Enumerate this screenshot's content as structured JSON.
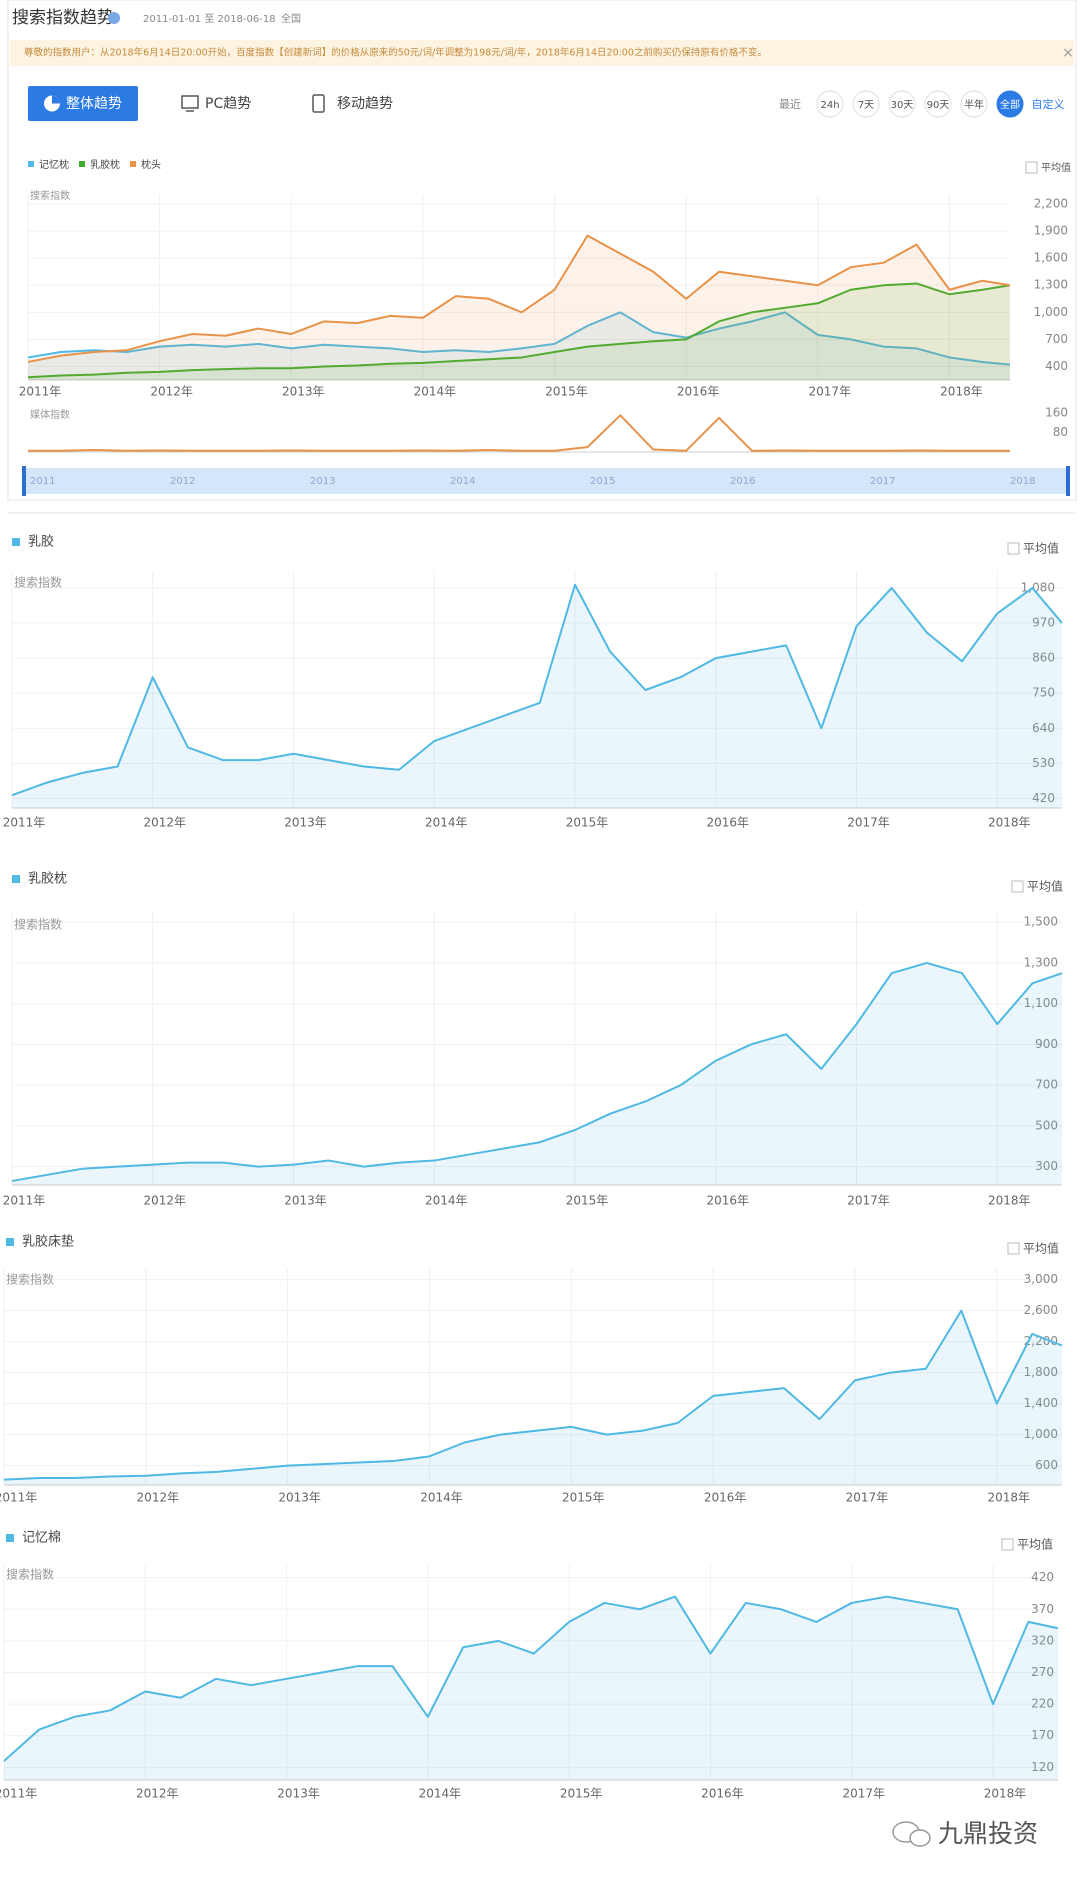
{
  "header": {
    "title": "搜索指数趋势",
    "date_range": "2011-01-01 至 2018-06-18",
    "region": "全国"
  },
  "notice": {
    "text": "尊敬的指数用户：从2018年6月14日20:00开始，百度指数【创建新词】的价格从原来的50元/词/年调整为198元/词/年，2018年6月14日20:00之前购买仍保持原有价格不变。",
    "close": "×"
  },
  "tabs": [
    "整体趋势",
    "PC趋势",
    "移动趋势"
  ],
  "range": {
    "label": "最近",
    "options": [
      "24h",
      "7天",
      "30天",
      "90天",
      "半年",
      "全部"
    ],
    "custom": "自定义"
  },
  "navigator": {
    "labels": [
      "2011",
      "2012",
      "2013",
      "2014",
      "2015",
      "2016",
      "2017",
      "2018"
    ]
  },
  "chart_data": [
    {
      "type": "line",
      "ylabel": "搜索指数",
      "avg_label": "平均值",
      "area": true,
      "grid": true,
      "x": [
        2011,
        2011.25,
        2011.5,
        2011.75,
        2012,
        2012.25,
        2012.5,
        2012.75,
        2013,
        2013.25,
        2013.5,
        2013.75,
        2014,
        2014.25,
        2014.5,
        2014.75,
        2015,
        2015.25,
        2015.5,
        2015.75,
        2016,
        2016.25,
        2016.5,
        2016.75,
        2017,
        2017.25,
        2017.5,
        2017.75,
        2018,
        2018.25,
        2018.46
      ],
      "series": [
        {
          "name": "记忆枕",
          "color": "#4fb9e3",
          "values": [
            500,
            560,
            580,
            560,
            620,
            640,
            620,
            650,
            600,
            640,
            620,
            600,
            560,
            580,
            560,
            600,
            650,
            850,
            1000,
            780,
            720,
            820,
            900,
            1000,
            750,
            700,
            620,
            600,
            500,
            450,
            420
          ]
        },
        {
          "name": "乳胶枕",
          "color": "#3fad2e",
          "values": [
            280,
            300,
            310,
            330,
            340,
            360,
            370,
            380,
            380,
            400,
            410,
            430,
            440,
            460,
            480,
            500,
            560,
            620,
            650,
            680,
            700,
            900,
            1000,
            1050,
            1100,
            1250,
            1300,
            1320,
            1200,
            1250,
            1300
          ]
        },
        {
          "name": "枕头",
          "color": "#e8924a",
          "values": [
            450,
            520,
            560,
            580,
            680,
            760,
            740,
            820,
            760,
            900,
            880,
            960,
            940,
            1180,
            1150,
            1000,
            1250,
            1850,
            1650,
            1450,
            1150,
            1450,
            1400,
            1350,
            1300,
            1500,
            1550,
            1750,
            1250,
            1350,
            1300
          ]
        }
      ],
      "xlim": [
        2011,
        2018.46
      ],
      "ylim": [
        250,
        2300
      ],
      "xticks": [
        {
          "value": 2011,
          "label": "2011年"
        },
        {
          "value": 2012,
          "label": "2012年"
        },
        {
          "value": 2013,
          "label": "2013年"
        },
        {
          "value": 2014,
          "label": "2014年"
        },
        {
          "value": 2015,
          "label": "2015年"
        },
        {
          "value": 2016,
          "label": "2016年"
        },
        {
          "value": 2017,
          "label": "2017年"
        },
        {
          "value": 2018,
          "label": "2018年"
        }
      ],
      "yticks": [
        {
          "value": 400,
          "label": "400"
        },
        {
          "value": 700,
          "label": "700"
        },
        {
          "value": 1000,
          "label": "1,000"
        },
        {
          "value": 1300,
          "label": "1,300"
        },
        {
          "value": 1600,
          "label": "1,600"
        },
        {
          "value": 1900,
          "label": "1,900"
        },
        {
          "value": 2200,
          "label": "2,200"
        }
      ]
    },
    {
      "type": "line",
      "ylabel": "媒体指数",
      "area": false,
      "grid": false,
      "x": [
        2011,
        2011.25,
        2011.5,
        2011.75,
        2012,
        2012.25,
        2012.5,
        2012.75,
        2013,
        2013.25,
        2013.5,
        2013.75,
        2014,
        2014.25,
        2014.5,
        2014.75,
        2015,
        2015.25,
        2015.5,
        2015.75,
        2016,
        2016.25,
        2016.5,
        2016.75,
        2017,
        2017.25,
        2017.5,
        2017.75,
        2018,
        2018.25,
        2018.46
      ],
      "series": [
        {
          "color": "#e8924a",
          "values": [
            5,
            5,
            8,
            5,
            6,
            5,
            5,
            5,
            6,
            5,
            5,
            5,
            6,
            5,
            8,
            5,
            5,
            20,
            150,
            10,
            5,
            140,
            5,
            6,
            5,
            5,
            5,
            6,
            5,
            5,
            5
          ]
        }
      ],
      "xlim": [
        2011,
        2018.46
      ],
      "ylim": [
        0,
        180
      ],
      "yticks": [
        80,
        160
      ]
    },
    {
      "type": "line",
      "ylabel": "搜索指数",
      "avg_label": "平均值",
      "area": true,
      "grid": true,
      "x": [
        2011,
        2011.25,
        2011.5,
        2011.75,
        2012,
        2012.25,
        2012.5,
        2012.75,
        2013,
        2013.25,
        2013.5,
        2013.75,
        2014,
        2014.25,
        2014.5,
        2014.75,
        2015,
        2015.25,
        2015.5,
        2015.75,
        2016,
        2016.25,
        2016.5,
        2016.75,
        2017,
        2017.25,
        2017.5,
        2017.75,
        2018,
        2018.25,
        2018.46
      ],
      "series": [
        {
          "name": "乳胶",
          "color": "#4fb9e3",
          "values": [
            430,
            470,
            500,
            520,
            800,
            580,
            540,
            540,
            560,
            540,
            520,
            510,
            600,
            640,
            680,
            720,
            1090,
            880,
            760,
            800,
            860,
            880,
            900,
            640,
            960,
            1080,
            940,
            850,
            1000,
            1080,
            970
          ]
        }
      ],
      "xlim": [
        2011,
        2018.46
      ],
      "ylim": [
        390,
        1130
      ],
      "xticks": [
        {
          "value": 2011,
          "label": "2011年"
        },
        {
          "value": 2012,
          "label": "2012年"
        },
        {
          "value": 2013,
          "label": "2013年"
        },
        {
          "value": 2014,
          "label": "2014年"
        },
        {
          "value": 2015,
          "label": "2015年"
        },
        {
          "value": 2016,
          "label": "2016年"
        },
        {
          "value": 2017,
          "label": "2017年"
        },
        {
          "value": 2018,
          "label": "2018年"
        }
      ],
      "yticks": [
        420,
        530,
        640,
        750,
        860,
        970,
        {
          "value": 1080,
          "label": "1,080"
        }
      ]
    },
    {
      "type": "line",
      "ylabel": "搜索指数",
      "avg_label": "平均值",
      "area": true,
      "grid": true,
      "x": [
        2011,
        2011.25,
        2011.5,
        2011.75,
        2012,
        2012.25,
        2012.5,
        2012.75,
        2013,
        2013.25,
        2013.5,
        2013.75,
        2014,
        2014.25,
        2014.5,
        2014.75,
        2015,
        2015.25,
        2015.5,
        2015.75,
        2016,
        2016.25,
        2016.5,
        2016.75,
        2017,
        2017.25,
        2017.5,
        2017.75,
        2018,
        2018.25,
        2018.46
      ],
      "series": [
        {
          "name": "乳胶枕",
          "color": "#4fb9e3",
          "values": [
            230,
            260,
            290,
            300,
            310,
            320,
            320,
            300,
            310,
            330,
            300,
            320,
            330,
            360,
            390,
            420,
            480,
            560,
            620,
            700,
            820,
            900,
            950,
            780,
            1000,
            1250,
            1300,
            1250,
            1000,
            1200,
            1250
          ]
        }
      ],
      "xlim": [
        2011,
        2018.46
      ],
      "ylim": [
        210,
        1560
      ],
      "xticks": [
        {
          "value": 2011,
          "label": "2011年"
        },
        {
          "value": 2012,
          "label": "2012年"
        },
        {
          "value": 2013,
          "label": "2013年"
        },
        {
          "value": 2014,
          "label": "2014年"
        },
        {
          "value": 2015,
          "label": "2015年"
        },
        {
          "value": 2016,
          "label": "2016年"
        },
        {
          "value": 2017,
          "label": "2017年"
        },
        {
          "value": 2018,
          "label": "2018年"
        }
      ],
      "yticks": [
        300,
        500,
        700,
        900,
        {
          "value": 1100,
          "label": "1,100"
        },
        {
          "value": 1300,
          "label": "1,300"
        },
        {
          "value": 1500,
          "label": "1,500"
        }
      ]
    },
    {
      "type": "line",
      "ylabel": "搜索指数",
      "avg_label": "平均值",
      "area": true,
      "grid": true,
      "x": [
        2011,
        2011.25,
        2011.5,
        2011.75,
        2012,
        2012.25,
        2012.5,
        2012.75,
        2013,
        2013.25,
        2013.5,
        2013.75,
        2014,
        2014.25,
        2014.5,
        2014.75,
        2015,
        2015.25,
        2015.5,
        2015.75,
        2016,
        2016.25,
        2016.5,
        2016.75,
        2017,
        2017.25,
        2017.5,
        2017.75,
        2018,
        2018.25,
        2018.46
      ],
      "series": [
        {
          "name": "乳胶床垫",
          "color": "#4fb9e3",
          "values": [
            420,
            440,
            440,
            460,
            470,
            500,
            520,
            560,
            600,
            620,
            640,
            660,
            720,
            900,
            1000,
            1050,
            1100,
            1000,
            1050,
            1150,
            1500,
            1550,
            1600,
            1200,
            1700,
            1800,
            1850,
            2600,
            1400,
            2300,
            2150
          ]
        }
      ],
      "xlim": [
        2011,
        2018.46
      ],
      "ylim": [
        350,
        3150
      ],
      "xticks": [
        {
          "value": 2011,
          "label": "2011年"
        },
        {
          "value": 2012,
          "label": "2012年"
        },
        {
          "value": 2013,
          "label": "2013年"
        },
        {
          "value": 2014,
          "label": "2014年"
        },
        {
          "value": 2015,
          "label": "2015年"
        },
        {
          "value": 2016,
          "label": "2016年"
        },
        {
          "value": 2017,
          "label": "2017年"
        },
        {
          "value": 2018,
          "label": "2018年"
        }
      ],
      "yticks": [
        600,
        {
          "value": 1000,
          "label": "1,000"
        },
        {
          "value": 1400,
          "label": "1,400"
        },
        {
          "value": 1800,
          "label": "1,800"
        },
        {
          "value": 2200,
          "label": "2,200"
        },
        {
          "value": 2600,
          "label": "2,600"
        },
        {
          "value": 3000,
          "label": "3,000"
        }
      ]
    },
    {
      "type": "line",
      "ylabel": "搜索指数",
      "avg_label": "平均值",
      "area": true,
      "grid": true,
      "x": [
        2011,
        2011.25,
        2011.5,
        2011.75,
        2012,
        2012.25,
        2012.5,
        2012.75,
        2013,
        2013.25,
        2013.5,
        2013.75,
        2014,
        2014.25,
        2014.5,
        2014.75,
        2015,
        2015.25,
        2015.5,
        2015.75,
        2016,
        2016.25,
        2016.5,
        2016.75,
        2017,
        2017.25,
        2017.5,
        2017.75,
        2018,
        2018.25,
        2018.46
      ],
      "series": [
        {
          "name": "记忆棉",
          "color": "#4fb9e3",
          "values": [
            130,
            180,
            200,
            210,
            240,
            230,
            260,
            250,
            260,
            270,
            280,
            280,
            200,
            310,
            320,
            300,
            350,
            380,
            370,
            390,
            300,
            380,
            370,
            350,
            380,
            390,
            380,
            370,
            220,
            350,
            340
          ]
        }
      ],
      "xlim": [
        2011,
        2018.46
      ],
      "ylim": [
        100,
        440
      ],
      "xticks": [
        {
          "value": 2011,
          "label": "2011年"
        },
        {
          "value": 2012,
          "label": "2012年"
        },
        {
          "value": 2013,
          "label": "2013年"
        },
        {
          "value": 2014,
          "label": "2014年"
        },
        {
          "value": 2015,
          "label": "2015年"
        },
        {
          "value": 2016,
          "label": "2016年"
        },
        {
          "value": 2017,
          "label": "2017年"
        },
        {
          "value": 2018,
          "label": "2018年"
        }
      ],
      "yticks": [
        120,
        170,
        220,
        270,
        320,
        370,
        420
      ]
    }
  ],
  "footer": {
    "brand": "九鼎投资"
  }
}
